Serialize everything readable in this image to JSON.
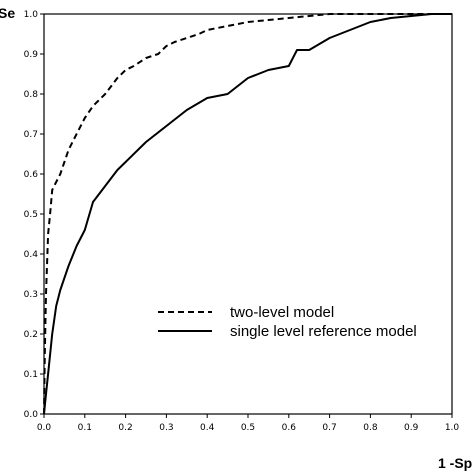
{
  "chart_data": {
    "type": "line",
    "title": "",
    "xlabel": "1 -Sp",
    "ylabel": "Se",
    "xlim": [
      0,
      1
    ],
    "ylim": [
      0,
      1
    ],
    "grid": false,
    "legend_position": "lower-right",
    "x_ticks": [
      "0.0",
      "0.1",
      "0.2",
      "0.3",
      "0.4",
      "0.5",
      "0.6",
      "0.7",
      "0.8",
      "0.9",
      "1.0"
    ],
    "y_ticks": [
      "0.0",
      "0.1",
      "0.2",
      "0.3",
      "0.4",
      "0.5",
      "0.6",
      "0.7",
      "0.8",
      "0.9",
      "1.0"
    ],
    "series": [
      {
        "name": "two-level model",
        "style": "dashed",
        "color": "#000000",
        "x": [
          0,
          0.002,
          0.005,
          0.01,
          0.015,
          0.02,
          0.03,
          0.04,
          0.05,
          0.06,
          0.08,
          0.1,
          0.12,
          0.15,
          0.18,
          0.2,
          0.22,
          0.25,
          0.28,
          0.3,
          0.32,
          0.35,
          0.38,
          0.4,
          0.45,
          0.5,
          0.55,
          0.6,
          0.65,
          0.7,
          0.8,
          0.9,
          1.0
        ],
        "y": [
          0,
          0.15,
          0.3,
          0.45,
          0.5,
          0.56,
          0.58,
          0.6,
          0.63,
          0.66,
          0.7,
          0.74,
          0.77,
          0.8,
          0.84,
          0.86,
          0.87,
          0.89,
          0.9,
          0.92,
          0.93,
          0.94,
          0.95,
          0.96,
          0.97,
          0.98,
          0.985,
          0.99,
          0.995,
          1.0,
          1.0,
          1.0,
          1.0
        ]
      },
      {
        "name": "single level reference model",
        "style": "solid",
        "color": "#000000",
        "x": [
          0,
          0.005,
          0.01,
          0.02,
          0.03,
          0.04,
          0.05,
          0.06,
          0.08,
          0.1,
          0.12,
          0.15,
          0.18,
          0.2,
          0.25,
          0.3,
          0.35,
          0.4,
          0.45,
          0.5,
          0.55,
          0.6,
          0.62,
          0.65,
          0.7,
          0.75,
          0.8,
          0.85,
          0.9,
          0.95,
          1.0
        ],
        "y": [
          0,
          0.05,
          0.1,
          0.2,
          0.27,
          0.31,
          0.34,
          0.37,
          0.42,
          0.46,
          0.53,
          0.57,
          0.61,
          0.63,
          0.68,
          0.72,
          0.76,
          0.79,
          0.8,
          0.84,
          0.86,
          0.87,
          0.91,
          0.91,
          0.94,
          0.96,
          0.98,
          0.99,
          0.995,
          1.0,
          1.0
        ]
      }
    ]
  }
}
